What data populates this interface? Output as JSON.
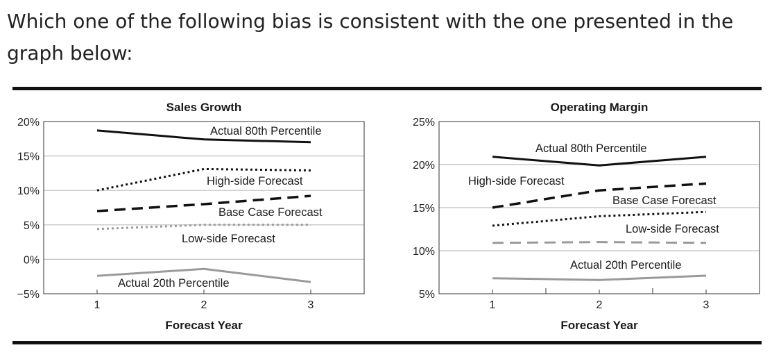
{
  "question": {
    "text": "Which one of the following bias is consistent with the one presented in the graph below:"
  },
  "chart_data": [
    {
      "type": "line",
      "title": "Sales Growth",
      "xlabel": "Forecast Year",
      "ylabel": "",
      "x": [
        1,
        2,
        3
      ],
      "xlim": [
        0.5,
        3.5
      ],
      "ylim": [
        -5,
        20
      ],
      "yticks": [
        -5,
        0,
        5,
        10,
        15,
        20
      ],
      "ytick_labels": [
        "−5%",
        "0%",
        "5%",
        "10%",
        "15%",
        "20%"
      ],
      "grid": true,
      "series": [
        {
          "name": "Actual 80th Percentile",
          "values": [
            18.7,
            17.4,
            17.0
          ],
          "color": "#111111",
          "dash": "solid",
          "width": 3
        },
        {
          "name": "High-side Forecast",
          "values": [
            10.0,
            13.1,
            12.9
          ],
          "color": "#111111",
          "dash": "dotted",
          "width": 3
        },
        {
          "name": "Base Case Forecast",
          "values": [
            7.0,
            8.0,
            9.2
          ],
          "color": "#111111",
          "dash": "dashed",
          "width": 3.5
        },
        {
          "name": "Low-side Forecast",
          "values": [
            4.4,
            5.0,
            5.0
          ],
          "color": "#9a9a9a",
          "dash": "dotted",
          "width": 3
        },
        {
          "name": "Actual 20th Percentile",
          "values": [
            -2.4,
            -1.4,
            -3.3
          ],
          "color": "#9a9a9a",
          "dash": "solid",
          "width": 3
        }
      ]
    },
    {
      "type": "line",
      "title": "Operating Margin",
      "xlabel": "Forecast Year",
      "ylabel": "",
      "x": [
        1,
        2,
        3
      ],
      "xlim": [
        0.5,
        3.5
      ],
      "ylim": [
        5,
        25
      ],
      "yticks": [
        5,
        10,
        15,
        20,
        25
      ],
      "ytick_labels": [
        "5%",
        "10%",
        "15%",
        "20%",
        "25%"
      ],
      "grid": true,
      "series": [
        {
          "name": "Actual 80th Percentile",
          "values": [
            20.9,
            19.9,
            20.9
          ],
          "color": "#111111",
          "dash": "solid",
          "width": 3
        },
        {
          "name": "High-side Forecast",
          "values": [
            15.0,
            17.0,
            17.8
          ],
          "color": "#111111",
          "dash": "dashed",
          "width": 3.5
        },
        {
          "name": "Base Case Forecast",
          "values": [
            12.9,
            14.0,
            14.5
          ],
          "color": "#111111",
          "dash": "dotted",
          "width": 3
        },
        {
          "name": "Low-side Forecast",
          "values": [
            10.9,
            11.0,
            10.9
          ],
          "color": "#9a9a9a",
          "dash": "dashed",
          "width": 3
        },
        {
          "name": "Actual 20th Percentile",
          "values": [
            6.8,
            6.6,
            7.1
          ],
          "color": "#9a9a9a",
          "dash": "solid",
          "width": 3
        }
      ]
    }
  ]
}
